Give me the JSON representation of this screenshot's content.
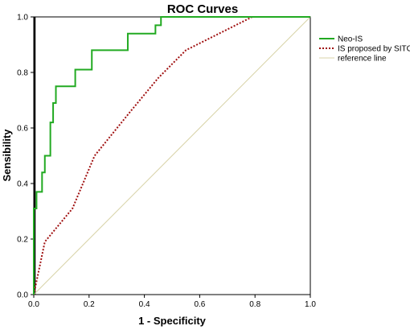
{
  "chart_data": {
    "type": "line",
    "title": "ROC Curves",
    "xlabel": "1 - Specificity",
    "ylabel": "Sensibility",
    "xlim": [
      0,
      1
    ],
    "ylim": [
      0,
      1
    ],
    "x_ticks": [
      "0.0",
      "0.2",
      "0.4",
      "0.6",
      "0.8",
      "1.0"
    ],
    "y_ticks": [
      "0.0",
      "0.2",
      "0.4",
      "0.6",
      "0.8",
      "1.0"
    ],
    "grid": false,
    "legend_position": "right",
    "series": [
      {
        "name": "Neo-IS",
        "color": "#22aa22",
        "style": "solid",
        "x": [
          0,
          0,
          0.01,
          0.01,
          0.03,
          0.03,
          0.04,
          0.04,
          0.06,
          0.06,
          0.07,
          0.07,
          0.08,
          0.08,
          0.15,
          0.15,
          0.21,
          0.21,
          0.34,
          0.34,
          0.44,
          0.44,
          0.46,
          0.46,
          1.0
        ],
        "y": [
          0,
          0.31,
          0.31,
          0.37,
          0.37,
          0.44,
          0.44,
          0.5,
          0.5,
          0.62,
          0.62,
          0.69,
          0.69,
          0.75,
          0.75,
          0.81,
          0.81,
          0.88,
          0.88,
          0.94,
          0.94,
          0.97,
          0.97,
          1.0,
          1.0
        ]
      },
      {
        "name": "IS proposed by SITC",
        "color": "#a01010",
        "style": "dotted",
        "x": [
          0,
          0.04,
          0.14,
          0.22,
          0.35,
          0.45,
          0.55,
          0.79,
          1.0
        ],
        "y": [
          0,
          0.19,
          0.31,
          0.5,
          0.66,
          0.78,
          0.88,
          1.0,
          1.0
        ]
      },
      {
        "name": "reference line",
        "color": "#d8d3a8",
        "style": "solid",
        "x": [
          0,
          1
        ],
        "y": [
          0,
          1
        ]
      }
    ]
  }
}
